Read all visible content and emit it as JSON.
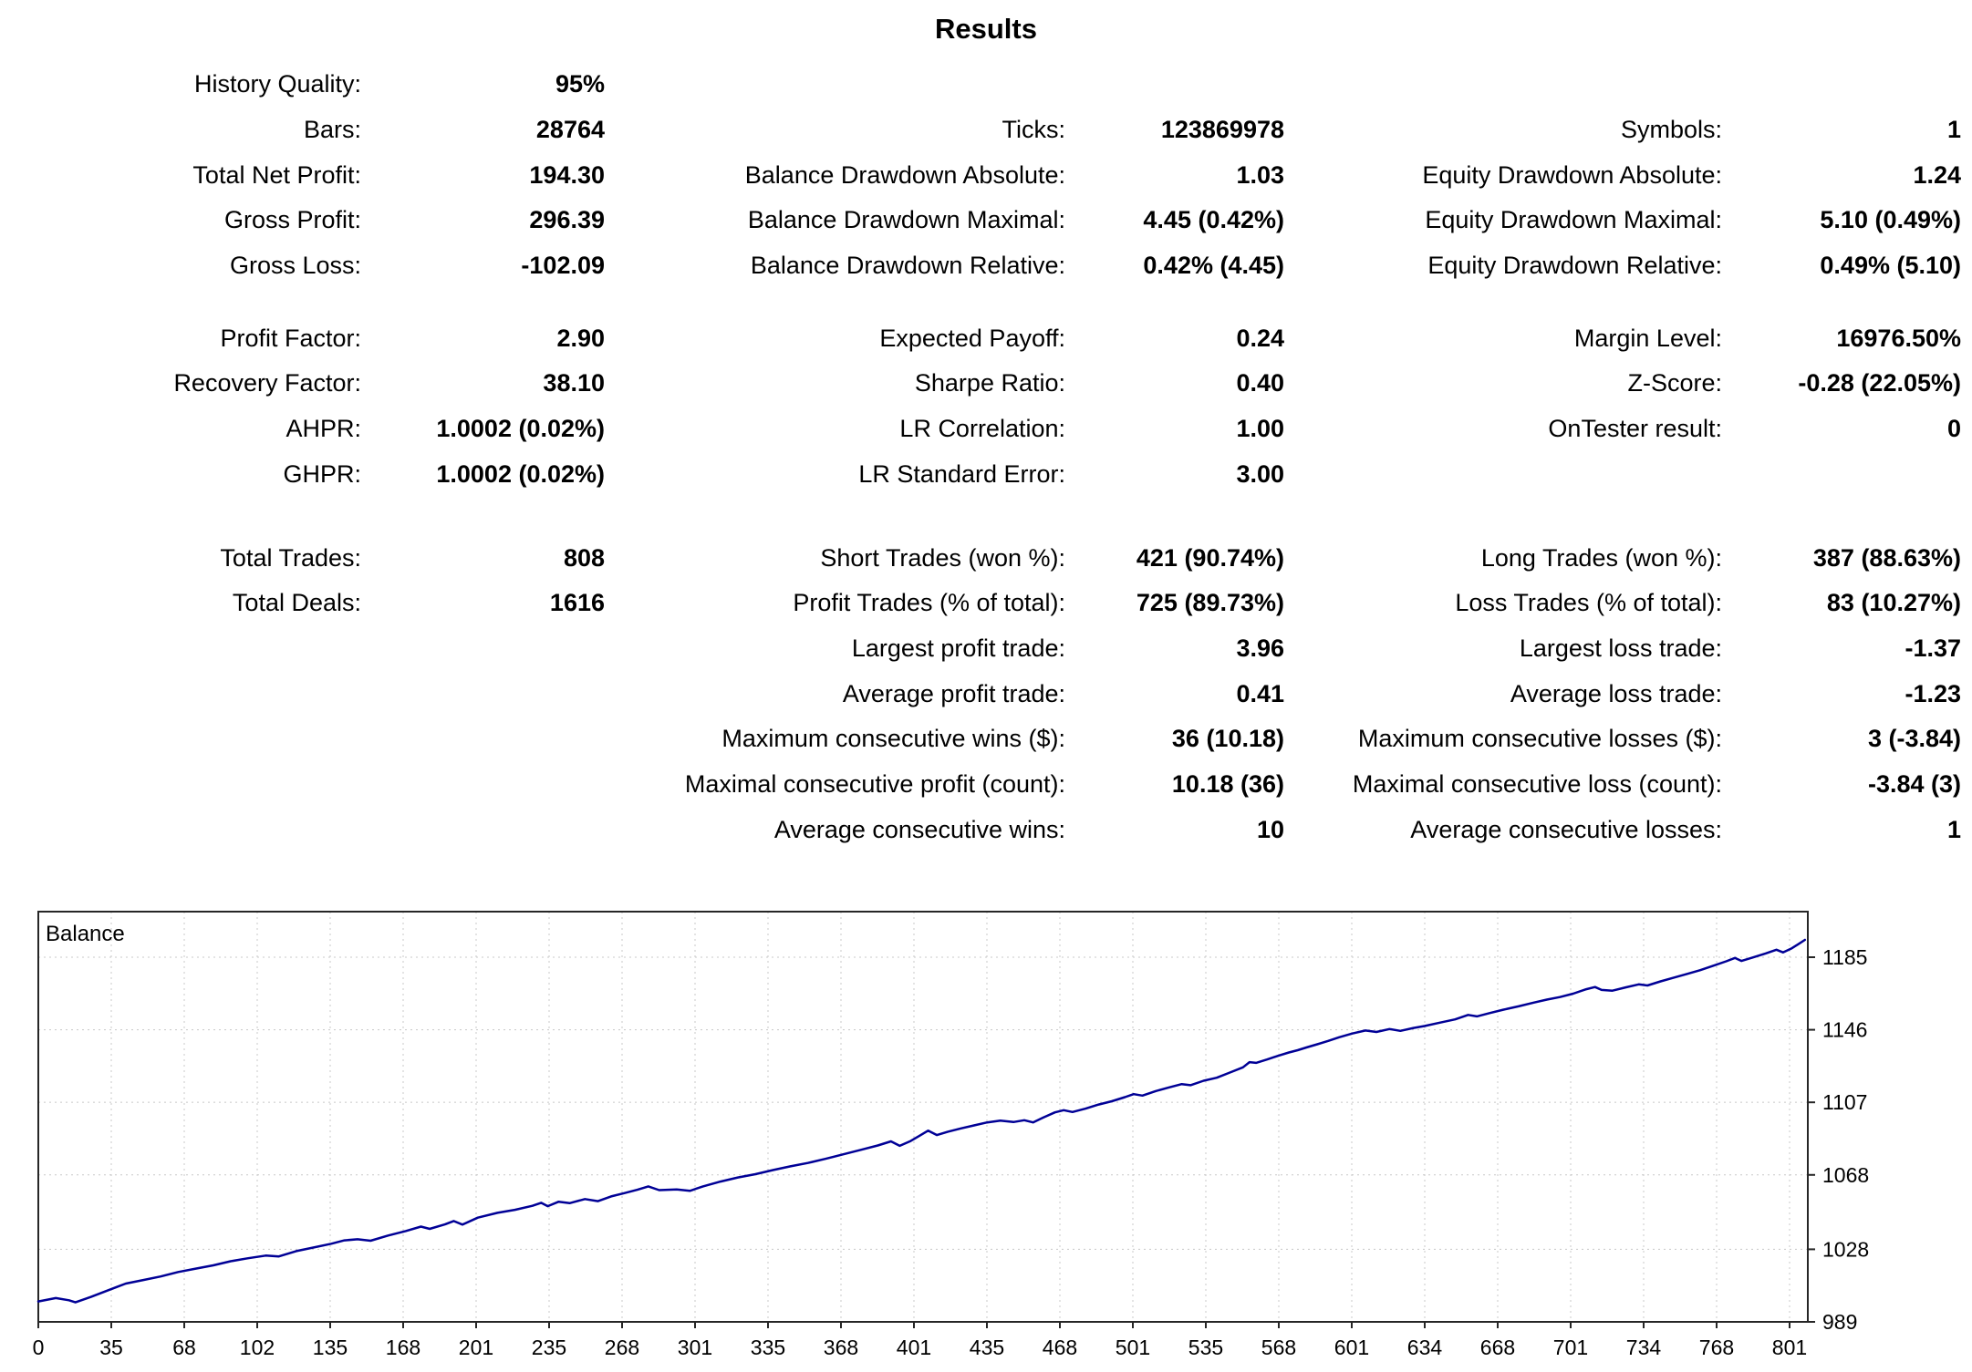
{
  "title": "Results",
  "stats": {
    "groups": [
      {
        "rows": [
          [
            "History Quality:",
            "95%",
            "",
            "",
            "",
            ""
          ],
          [
            "Bars:",
            "28764",
            "Ticks:",
            "123869978",
            "Symbols:",
            "1"
          ],
          [
            "Total Net Profit:",
            "194.30",
            "Balance Drawdown Absolute:",
            "1.03",
            "Equity Drawdown Absolute:",
            "1.24"
          ],
          [
            "Gross Profit:",
            "296.39",
            "Balance Drawdown Maximal:",
            "4.45 (0.42%)",
            "Equity Drawdown Maximal:",
            "5.10 (0.49%)"
          ],
          [
            "Gross Loss:",
            "-102.09",
            "Balance Drawdown Relative:",
            "0.42% (4.45)",
            "Equity Drawdown Relative:",
            "0.49% (5.10)"
          ]
        ]
      },
      {
        "rows": [
          [
            "Profit Factor:",
            "2.90",
            "Expected Payoff:",
            "0.24",
            "Margin Level:",
            "16976.50%"
          ],
          [
            "Recovery Factor:",
            "38.10",
            "Sharpe Ratio:",
            "0.40",
            "Z-Score:",
            "-0.28 (22.05%)"
          ],
          [
            "AHPR:",
            "1.0002 (0.02%)",
            "LR Correlation:",
            "1.00",
            "OnTester result:",
            "0"
          ],
          [
            "GHPR:",
            "1.0002 (0.02%)",
            "LR Standard Error:",
            "3.00",
            "",
            ""
          ]
        ]
      },
      {
        "rows": [
          [
            "Total Trades:",
            "808",
            "Short Trades (won %):",
            "421 (90.74%)",
            "Long Trades (won %):",
            "387 (88.63%)"
          ],
          [
            "Total Deals:",
            "1616",
            "Profit Trades (% of total):",
            "725 (89.73%)",
            "Loss Trades (% of total):",
            "83 (10.27%)"
          ],
          [
            "",
            "",
            "Largest profit trade:",
            "3.96",
            "Largest loss trade:",
            "-1.37"
          ],
          [
            "",
            "",
            "Average profit trade:",
            "0.41",
            "Average loss trade:",
            "-1.23"
          ],
          [
            "",
            "",
            "Maximum consecutive wins ($):",
            "36 (10.18)",
            "Maximum consecutive losses ($):",
            "3 (-3.84)"
          ],
          [
            "",
            "",
            "Maximal consecutive profit (count):",
            "10.18 (36)",
            "Maximal consecutive loss (count):",
            "-3.84 (3)"
          ],
          [
            "",
            "",
            "Average consecutive wins:",
            "10",
            "Average consecutive losses:",
            "1"
          ]
        ]
      }
    ]
  },
  "chart_data": {
    "type": "line",
    "title": "Balance",
    "xlabel": "",
    "ylabel": "",
    "x_ticks": [
      0,
      35,
      68,
      102,
      135,
      168,
      201,
      235,
      268,
      301,
      335,
      368,
      401,
      435,
      468,
      501,
      535,
      568,
      601,
      634,
      668,
      701,
      734,
      768,
      801
    ],
    "y_ticks": [
      1185,
      1146,
      1107,
      1068,
      1028,
      989
    ],
    "x_range": [
      0,
      809
    ],
    "y_range": [
      989,
      1209.5
    ],
    "grid": "dotted",
    "legend_position": "top-left-inside",
    "line_color": "#000096",
    "grid_color": "#c8c8c8",
    "border_color": "#262626",
    "series": [
      {
        "name": "Balance",
        "points": [
          [
            0,
            1000
          ],
          [
            8,
            1001.8
          ],
          [
            14,
            1000.6
          ],
          [
            17,
            999.5
          ],
          [
            24,
            1002.4
          ],
          [
            32,
            1006
          ],
          [
            40,
            1009.6
          ],
          [
            48,
            1011.5
          ],
          [
            56,
            1013.4
          ],
          [
            64,
            1015.8
          ],
          [
            72,
            1017.6
          ],
          [
            80,
            1019.4
          ],
          [
            88,
            1021.6
          ],
          [
            96,
            1023.2
          ],
          [
            104,
            1024.6
          ],
          [
            110,
            1024.2
          ],
          [
            118,
            1027
          ],
          [
            126,
            1029
          ],
          [
            134,
            1031
          ],
          [
            140,
            1032.8
          ],
          [
            146,
            1033.4
          ],
          [
            152,
            1032.6
          ],
          [
            160,
            1035.4
          ],
          [
            168,
            1037.8
          ],
          [
            175,
            1040.2
          ],
          [
            179,
            1039
          ],
          [
            186,
            1041.4
          ],
          [
            190,
            1043.2
          ],
          [
            194,
            1041.3
          ],
          [
            201,
            1045
          ],
          [
            210,
            1047.6
          ],
          [
            218,
            1049.2
          ],
          [
            226,
            1051.4
          ],
          [
            230,
            1053
          ],
          [
            233,
            1051.2
          ],
          [
            238,
            1053.6
          ],
          [
            243,
            1052.8
          ],
          [
            250,
            1055
          ],
          [
            256,
            1053.9
          ],
          [
            262,
            1056.4
          ],
          [
            268,
            1058.2
          ],
          [
            274,
            1060
          ],
          [
            279,
            1061.8
          ],
          [
            284,
            1059.8
          ],
          [
            292,
            1060.2
          ],
          [
            298,
            1059.4
          ],
          [
            304,
            1061.8
          ],
          [
            312,
            1064.4
          ],
          [
            320,
            1066.6
          ],
          [
            328,
            1068.4
          ],
          [
            336,
            1070.6
          ],
          [
            344,
            1072.6
          ],
          [
            352,
            1074.4
          ],
          [
            360,
            1076.6
          ],
          [
            368,
            1079
          ],
          [
            376,
            1081.4
          ],
          [
            384,
            1083.8
          ],
          [
            390,
            1086
          ],
          [
            394,
            1083.6
          ],
          [
            399,
            1086.2
          ],
          [
            403,
            1089
          ],
          [
            407,
            1091.8
          ],
          [
            411,
            1089.4
          ],
          [
            416,
            1091.2
          ],
          [
            422,
            1093
          ],
          [
            428,
            1094.6
          ],
          [
            434,
            1096.2
          ],
          [
            440,
            1097.2
          ],
          [
            446,
            1096.4
          ],
          [
            451,
            1097.4
          ],
          [
            455,
            1096.2
          ],
          [
            460,
            1099
          ],
          [
            465,
            1101.6
          ],
          [
            469,
            1102.8
          ],
          [
            473,
            1101.8
          ],
          [
            479,
            1103.6
          ],
          [
            485,
            1105.8
          ],
          [
            491,
            1107.6
          ],
          [
            497,
            1109.8
          ],
          [
            501,
            1111.4
          ],
          [
            505,
            1110.6
          ],
          [
            511,
            1113
          ],
          [
            517,
            1115
          ],
          [
            523,
            1116.8
          ],
          [
            527,
            1116.2
          ],
          [
            533,
            1118.6
          ],
          [
            539,
            1120.2
          ],
          [
            545,
            1123
          ],
          [
            551,
            1125.8
          ],
          [
            554,
            1128.6
          ],
          [
            557,
            1128.2
          ],
          [
            562,
            1130
          ],
          [
            567,
            1132
          ],
          [
            572,
            1133.8
          ],
          [
            576,
            1135
          ],
          [
            580,
            1136.5
          ],
          [
            585,
            1138.2
          ],
          [
            590,
            1140
          ],
          [
            595,
            1142
          ],
          [
            601,
            1144
          ],
          [
            607,
            1145.6
          ],
          [
            612,
            1144.8
          ],
          [
            618,
            1146.4
          ],
          [
            623,
            1145.4
          ],
          [
            629,
            1147
          ],
          [
            634,
            1148
          ],
          [
            641,
            1149.8
          ],
          [
            648,
            1151.6
          ],
          [
            654,
            1154
          ],
          [
            658,
            1153.2
          ],
          [
            664,
            1155
          ],
          [
            670,
            1156.8
          ],
          [
            677,
            1158.6
          ],
          [
            684,
            1160.6
          ],
          [
            690,
            1162.2
          ],
          [
            696,
            1163.6
          ],
          [
            702,
            1165.4
          ],
          [
            708,
            1167.8
          ],
          [
            712,
            1169
          ],
          [
            715,
            1167.4
          ],
          [
            720,
            1167
          ],
          [
            726,
            1168.8
          ],
          [
            732,
            1170.4
          ],
          [
            736,
            1169.8
          ],
          [
            742,
            1172
          ],
          [
            748,
            1174
          ],
          [
            754,
            1176
          ],
          [
            760,
            1178
          ],
          [
            766,
            1180.4
          ],
          [
            772,
            1182.8
          ],
          [
            776,
            1184.6
          ],
          [
            779,
            1183
          ],
          [
            784,
            1184.8
          ],
          [
            790,
            1187
          ],
          [
            795,
            1189
          ],
          [
            798,
            1187.6
          ],
          [
            802,
            1189.8
          ],
          [
            805,
            1192
          ],
          [
            808,
            1194.3
          ]
        ]
      }
    ]
  }
}
